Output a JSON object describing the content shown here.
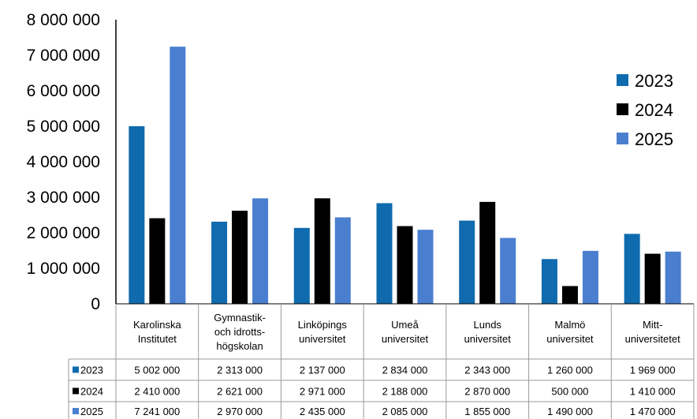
{
  "chart_data": {
    "type": "bar",
    "categories": [
      [
        "Karolinska",
        "Institutet"
      ],
      [
        "Gymnastik-",
        "och idrotts-",
        "högskolan"
      ],
      [
        "Linköpings",
        "universitet"
      ],
      [
        "Umeå",
        "universitet"
      ],
      [
        "Lunds",
        "universitet"
      ],
      [
        "Malmö",
        "universitet"
      ],
      [
        "Mitt-",
        "universitetet"
      ]
    ],
    "series": [
      {
        "name": "2023",
        "color": "#0F6BAE",
        "values": [
          5002000,
          2313000,
          2137000,
          2834000,
          2343000,
          1260000,
          1969000
        ],
        "labels": [
          "5 002 000",
          "2 313 000",
          "2 137 000",
          "2 834 000",
          "2 343 000",
          "1 260 000",
          "1 969 000"
        ]
      },
      {
        "name": "2024",
        "color": "#000000",
        "values": [
          2410000,
          2621000,
          2971000,
          2188000,
          2870000,
          500000,
          1410000
        ],
        "labels": [
          "2 410 000",
          "2 621 000",
          "2 971 000",
          "2 188 000",
          "2 870 000",
          "500 000",
          "1 410 000"
        ]
      },
      {
        "name": "2025",
        "color": "#4A7FD0",
        "values": [
          7241000,
          2970000,
          2435000,
          2085000,
          1855000,
          1490000,
          1470000
        ],
        "labels": [
          "7 241 000",
          "2 970 000",
          "2 435 000",
          "2 085 000",
          "1 855 000",
          "1 490 000",
          "1 470 000"
        ]
      }
    ],
    "yticks": [
      0,
      1000000,
      2000000,
      3000000,
      4000000,
      5000000,
      6000000,
      7000000,
      8000000
    ],
    "ytick_labels": [
      "0",
      "1 000 000",
      "2 000 000",
      "3 000 000",
      "4 000 000",
      "5 000 000",
      "6 000 000",
      "7 000 000",
      "8 000 000"
    ],
    "ylim": [
      0,
      8000000
    ],
    "legend": "right",
    "data_table": true,
    "grid": false
  }
}
